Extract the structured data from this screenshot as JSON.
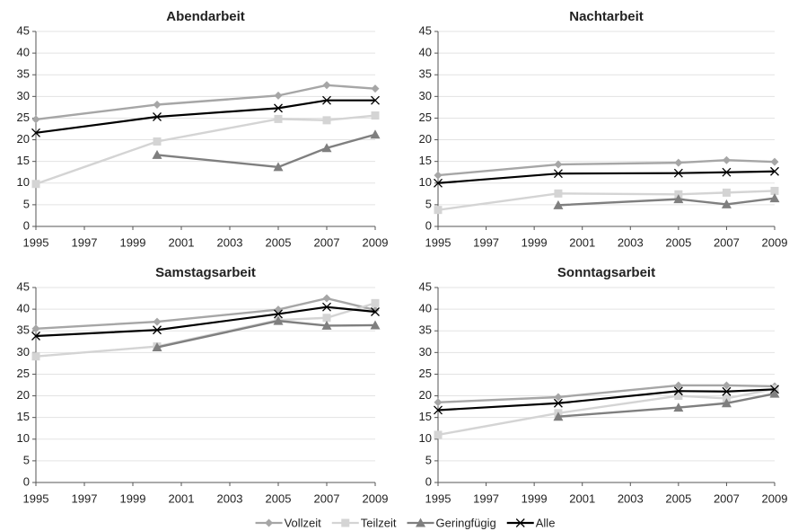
{
  "chart_data": [
    {
      "type": "line",
      "title": "Abendarbeit",
      "x": [
        1995,
        2000,
        2005,
        2007,
        2009
      ],
      "xlim": [
        1995,
        2009
      ],
      "xticks": [
        1995,
        1997,
        1999,
        2001,
        2003,
        2005,
        2007,
        2009
      ],
      "ylim": [
        0,
        45
      ],
      "yticks": [
        0,
        5,
        10,
        15,
        20,
        25,
        30,
        35,
        40,
        45
      ],
      "grid": true,
      "series": [
        {
          "name": "Vollzeit",
          "color": "#a6a6a6",
          "marker": "diamond",
          "values": [
            24.7,
            28.1,
            30.2,
            32.6,
            31.8
          ]
        },
        {
          "name": "Teilzeit",
          "color": "#d4d4d4",
          "marker": "square",
          "values": [
            9.8,
            19.6,
            24.8,
            24.5,
            25.6
          ]
        },
        {
          "name": "Geringfügig",
          "color": "#7f7f7f",
          "marker": "triangle",
          "values": [
            null,
            16.5,
            13.7,
            18.1,
            21.2
          ]
        },
        {
          "name": "Alle",
          "color": "#000000",
          "marker": "x",
          "values": [
            21.6,
            25.3,
            27.3,
            29.1,
            29.1
          ]
        }
      ]
    },
    {
      "type": "line",
      "title": "Nachtarbeit",
      "x": [
        1995,
        2000,
        2005,
        2007,
        2009
      ],
      "xlim": [
        1995,
        2009
      ],
      "xticks": [
        1995,
        1997,
        1999,
        2001,
        2003,
        2005,
        2007,
        2009
      ],
      "ylim": [
        0,
        45
      ],
      "yticks": [
        0,
        5,
        10,
        15,
        20,
        25,
        30,
        35,
        40,
        45
      ],
      "grid": true,
      "series": [
        {
          "color": "#a6a6a6",
          "marker": "diamond",
          "values": [
            11.8,
            14.3,
            14.7,
            15.3,
            14.9
          ]
        },
        {
          "color": "#d4d4d4",
          "marker": "square",
          "values": [
            3.8,
            7.6,
            7.4,
            7.8,
            8.2
          ]
        },
        {
          "color": "#7f7f7f",
          "marker": "triangle",
          "values": [
            null,
            4.9,
            6.3,
            5.1,
            6.5
          ]
        },
        {
          "color": "#000000",
          "marker": "x",
          "values": [
            10,
            12.2,
            12.3,
            12.5,
            12.7
          ]
        }
      ]
    },
    {
      "type": "line",
      "title": "Samstagsarbeit",
      "x": [
        1995,
        2000,
        2005,
        2007,
        2009
      ],
      "xlim": [
        1995,
        2009
      ],
      "xticks": [
        1995,
        1997,
        1999,
        2001,
        2003,
        2005,
        2007,
        2009
      ],
      "ylim": [
        0,
        45
      ],
      "yticks": [
        0,
        5,
        10,
        15,
        20,
        25,
        30,
        35,
        40,
        45
      ],
      "grid": true,
      "series": [
        {
          "color": "#a6a6a6",
          "marker": "diamond",
          "values": [
            35.5,
            37.1,
            39.9,
            42.5,
            39.8
          ]
        },
        {
          "color": "#d4d4d4",
          "marker": "square",
          "values": [
            29.1,
            31.4,
            37.5,
            38,
            41.4
          ]
        },
        {
          "color": "#7f7f7f",
          "marker": "triangle",
          "values": [
            null,
            31.2,
            37.3,
            36.2,
            36.3
          ]
        },
        {
          "color": "#000000",
          "marker": "x",
          "values": [
            33.8,
            35.2,
            38.9,
            40.5,
            39.4
          ]
        }
      ]
    },
    {
      "type": "line",
      "title": "Sonntagsarbeit",
      "x": [
        1995,
        2000,
        2005,
        2007,
        2009
      ],
      "xlim": [
        1995,
        2009
      ],
      "xticks": [
        1995,
        1997,
        1999,
        2001,
        2003,
        2005,
        2007,
        2009
      ],
      "ylim": [
        0,
        45
      ],
      "yticks": [
        0,
        5,
        10,
        15,
        20,
        25,
        30,
        35,
        40,
        45
      ],
      "grid": true,
      "series": [
        {
          "color": "#a6a6a6",
          "marker": "diamond",
          "values": [
            18.5,
            19.7,
            22.4,
            22.4,
            22.2
          ]
        },
        {
          "color": "#d4d4d4",
          "marker": "square",
          "values": [
            11,
            16,
            20,
            19.4,
            21.6
          ]
        },
        {
          "color": "#7f7f7f",
          "marker": "triangle",
          "values": [
            null,
            15.2,
            17.3,
            18.3,
            20.5
          ]
        },
        {
          "color": "#000000",
          "marker": "x",
          "values": [
            16.7,
            18.3,
            21.1,
            21,
            21.5
          ]
        }
      ]
    }
  ]
}
